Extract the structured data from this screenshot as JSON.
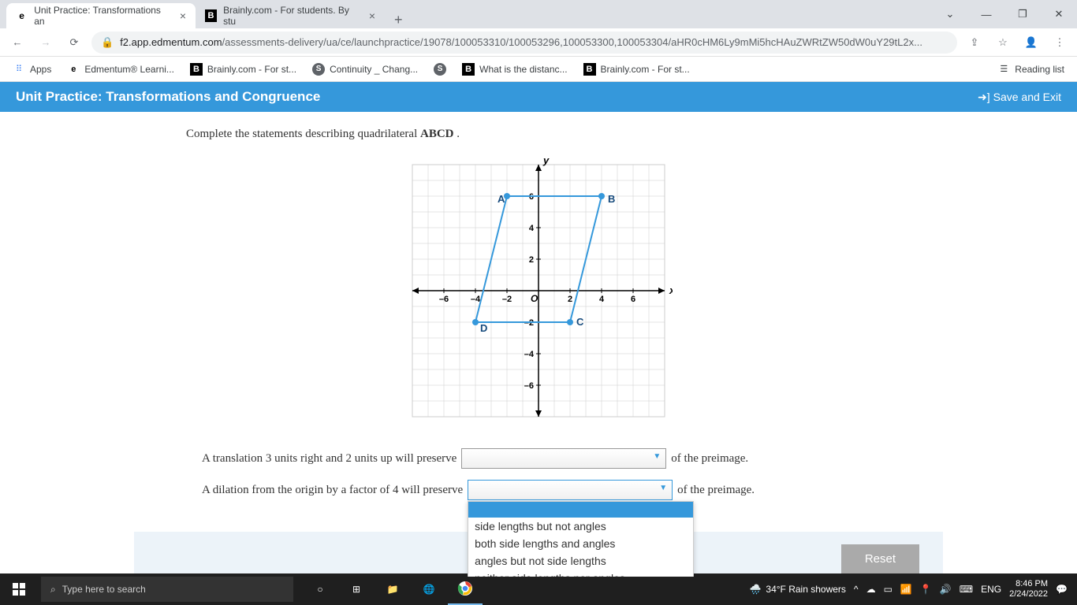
{
  "browser": {
    "tabs": [
      {
        "title": "Unit Practice: Transformations an",
        "favicon": "e"
      },
      {
        "title": "Brainly.com - For students. By stu",
        "favicon": "B"
      }
    ],
    "url_prefix": "f2.app.edmentum.com",
    "url_path": "/assessments-delivery/ua/ce/launchpractice/19078/100053310/100053296,100053300,100053304/aHR0cHM6Ly9mMi5hcHAuZWRtZW50dW0uY29tL2x...",
    "bookmarks": [
      {
        "label": "Apps",
        "icon": "grid"
      },
      {
        "label": "Edmentum® Learni...",
        "icon": "e"
      },
      {
        "label": "Brainly.com - For st...",
        "icon": "B"
      },
      {
        "label": "Continuity _ Chang...",
        "icon": "S"
      },
      {
        "label": "",
        "icon": "S"
      },
      {
        "label": "What is the distanc...",
        "icon": "B"
      },
      {
        "label": "Brainly.com - For st...",
        "icon": "B"
      }
    ],
    "reading_list": "Reading list"
  },
  "page": {
    "title": "Unit Practice: Transformations and Congruence",
    "save_exit": "Save and Exit",
    "instruction_pre": "Complete the statements describing quadrilateral ",
    "instruction_bold": "ABCD",
    "instruction_post": " .",
    "chart": {
      "xlim": [
        -8,
        8
      ],
      "ylim": [
        -8,
        8
      ],
      "xticks": [
        -6,
        -4,
        -2,
        2,
        4,
        6
      ],
      "yticks": [
        -6,
        -4,
        -2,
        2,
        4,
        6
      ],
      "x_label": "x",
      "y_label": "y",
      "origin_label": "O",
      "points": {
        "A": {
          "x": -2,
          "y": 6,
          "label": "A"
        },
        "B": {
          "x": 4,
          "y": 6,
          "label": "B"
        },
        "C": {
          "x": 2,
          "y": -2,
          "label": "C"
        },
        "D": {
          "x": -4,
          "y": -2,
          "label": "D"
        }
      },
      "point_color": "#3598db",
      "line_color": "#3598db",
      "label_color": "#164a7c",
      "grid_color": "#cccccc",
      "axis_color": "#000000"
    },
    "statement1_pre": "A translation 3 units right and 2 units up will preserve ",
    "statement1_post": " of the preimage.",
    "statement2_pre": "A dilation from the origin by a factor of 4 will preserve ",
    "statement2_post": " of the preimage.",
    "dropdown_options": [
      "side lengths but not angles",
      "both side lengths and angles",
      "angles but not side lengths",
      "neither side lengths nor angles"
    ],
    "reset_label": "Reset"
  },
  "taskbar": {
    "search_placeholder": "Type here to search",
    "weather": "34°F  Rain showers",
    "lang": "ENG",
    "time": "8:46 PM",
    "date": "2/24/2022"
  }
}
